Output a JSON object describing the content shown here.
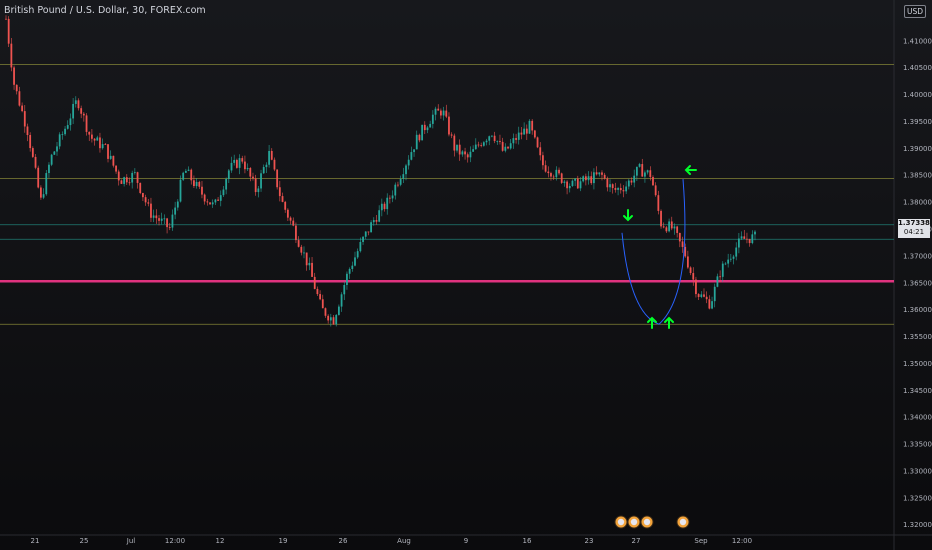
{
  "header": {
    "title": "British Pound / U.S. Dollar, 30, FOREX.com",
    "currency": "USD"
  },
  "price_tag": {
    "price": "1.37338",
    "countdown": "04:21"
  },
  "colors": {
    "up": "#26a69a",
    "down": "#ef5350",
    "horizontal_level": "#8f8f3a",
    "key_level": "#e0337f",
    "channel": "#22887e",
    "projection": "#2962ff",
    "arrow": "#00ff2a",
    "grid_text": "#b2b5be"
  },
  "chart_data": {
    "type": "candlestick",
    "symbol": "GBPUSD",
    "interval": "30",
    "ylim": [
      1.318,
      1.4175
    ],
    "yticks": [
      "1.41000",
      "1.40500",
      "1.40000",
      "1.39500",
      "1.39000",
      "1.38500",
      "1.38000",
      "1.37500",
      "1.37000",
      "1.36500",
      "1.36000",
      "1.35500",
      "1.35000",
      "1.34500",
      "1.34000",
      "1.33500",
      "1.33000",
      "1.32500",
      "1.32000"
    ],
    "xticks": [
      "21",
      "25",
      "Jul",
      "12:00",
      "12",
      "19",
      "26",
      "Aug",
      "9",
      "16",
      "23",
      "27",
      "Sep",
      "12:00"
    ],
    "price_path": [
      [
        0,
        1.414
      ],
      [
        0.008,
        1.402
      ],
      [
        0.022,
        1.393
      ],
      [
        0.035,
        1.38
      ],
      [
        0.045,
        1.388
      ],
      [
        0.058,
        1.393
      ],
      [
        0.072,
        1.399
      ],
      [
        0.085,
        1.392
      ],
      [
        0.1,
        1.39
      ],
      [
        0.115,
        1.384
      ],
      [
        0.13,
        1.385
      ],
      [
        0.145,
        1.378
      ],
      [
        0.165,
        1.375
      ],
      [
        0.18,
        1.386
      ],
      [
        0.195,
        1.382
      ],
      [
        0.21,
        1.379
      ],
      [
        0.225,
        1.386
      ],
      [
        0.238,
        1.388
      ],
      [
        0.252,
        1.382
      ],
      [
        0.265,
        1.389
      ],
      [
        0.278,
        1.38
      ],
      [
        0.29,
        1.375
      ],
      [
        0.305,
        1.368
      ],
      [
        0.318,
        1.36
      ],
      [
        0.33,
        1.358
      ],
      [
        0.345,
        1.367
      ],
      [
        0.36,
        1.373
      ],
      [
        0.372,
        1.377
      ],
      [
        0.385,
        1.38
      ],
      [
        0.4,
        1.386
      ],
      [
        0.415,
        1.392
      ],
      [
        0.43,
        1.396
      ],
      [
        0.44,
        1.397
      ],
      [
        0.452,
        1.39
      ],
      [
        0.465,
        1.388
      ],
      [
        0.478,
        1.391
      ],
      [
        0.49,
        1.393
      ],
      [
        0.502,
        1.389
      ],
      [
        0.515,
        1.392
      ],
      [
        0.528,
        1.394
      ],
      [
        0.54,
        1.387
      ],
      [
        0.555,
        1.385
      ],
      [
        0.57,
        1.383
      ],
      [
        0.585,
        1.384
      ],
      [
        0.6,
        1.385
      ],
      [
        0.612,
        1.382
      ],
      [
        0.625,
        1.383
      ],
      [
        0.638,
        1.386
      ],
      [
        0.65,
        1.385
      ],
      [
        0.66,
        1.376
      ],
      [
        0.672,
        1.375
      ],
      [
        0.685,
        1.37
      ],
      [
        0.697,
        1.363
      ],
      [
        0.71,
        1.361
      ],
      [
        0.72,
        1.367
      ],
      [
        0.73,
        1.37
      ],
      [
        0.742,
        1.373
      ],
      [
        0.755,
        1.3734
      ]
    ],
    "levels": [
      1.4055,
      1.3843,
      1.3757,
      1.373,
      1.3652,
      1.3572
    ],
    "key_level": 1.3652,
    "projection": {
      "from": 1.3742,
      "bottom": 1.3572,
      "to": 1.3842
    }
  }
}
